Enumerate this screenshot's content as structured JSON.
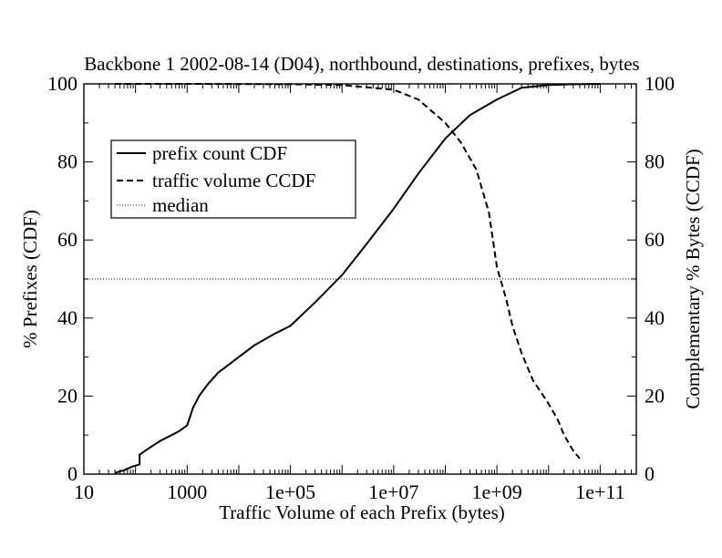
{
  "chart_data": {
    "type": "line",
    "title": "Backbone 1 2002-08-14 (D04), northbound, destinations, prefixes, bytes",
    "xlabel": "Traffic Volume of each Prefix (bytes)",
    "ylabel": "% Prefixes (CDF)",
    "ylabel_right": "Complementary % Bytes (CCDF)",
    "xscale": "log",
    "xlim": [
      10,
      500000000000
    ],
    "ylim": [
      0,
      100
    ],
    "x_tick_labels": [
      "10",
      "1000",
      "1e+05",
      "1e+07",
      "1e+09",
      "1e+11"
    ],
    "y_tick_labels": [
      "0",
      "20",
      "40",
      "60",
      "80",
      "100"
    ],
    "y_right_tick_labels": [
      "0",
      "20",
      "40",
      "60",
      "80",
      "100"
    ],
    "grid": false,
    "legend_position": "upper-left",
    "series": [
      {
        "name": "prefix count CDF",
        "style": "solid",
        "x": [
          40,
          60,
          90,
          120,
          120,
          200,
          300,
          500,
          700,
          1000,
          1300,
          1700,
          2500,
          4000,
          10000,
          20000,
          50000,
          100000,
          300000,
          1000000,
          3000000,
          10000000,
          30000000,
          100000000,
          300000000,
          1000000000,
          3000000000,
          10000000000,
          30000000000,
          100000000000
        ],
        "y": [
          0.3,
          1,
          2,
          2.5,
          5,
          7,
          8.5,
          10,
          11,
          12.5,
          17,
          20,
          23,
          26,
          30,
          33,
          36,
          38,
          44,
          51,
          59,
          68,
          77,
          86,
          92,
          96,
          99,
          99.7,
          99.9,
          100
        ]
      },
      {
        "name": "traffic volume CCDF",
        "style": "dashed",
        "x": [
          40,
          1000,
          100000,
          1000000,
          10000000,
          30000000,
          100000000,
          200000000,
          400000000,
          700000000,
          1000000000,
          1500000000,
          2000000000,
          3000000000,
          5000000000,
          8000000000,
          10000000000,
          15000000000,
          20000000000,
          30000000000,
          40000000000
        ],
        "y": [
          100,
          100,
          99.9,
          99.7,
          98.5,
          96,
          90,
          85,
          78,
          67,
          53,
          45,
          38,
          31,
          24,
          20,
          18,
          14,
          10,
          6,
          4
        ]
      },
      {
        "name": "median",
        "style": "dotted",
        "x": [
          10,
          500000000000
        ],
        "y": [
          50,
          50
        ]
      }
    ]
  }
}
